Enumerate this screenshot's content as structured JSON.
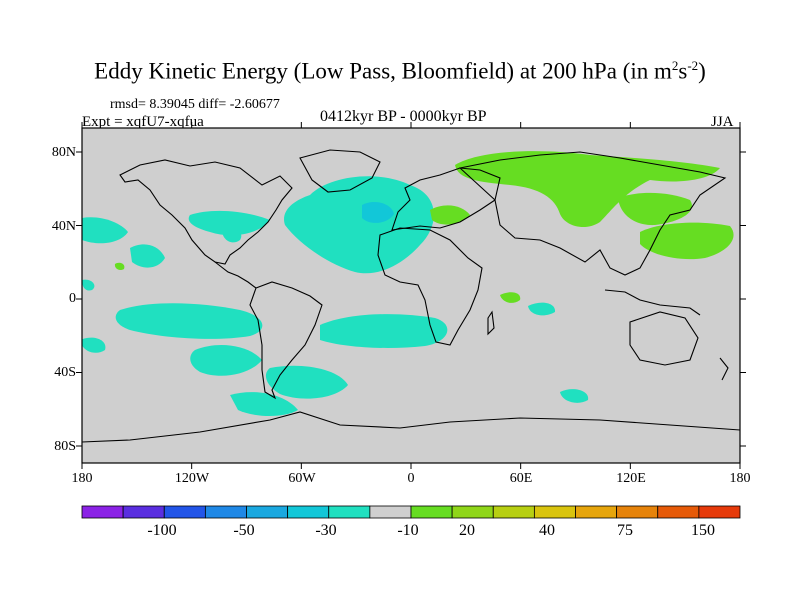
{
  "title": {
    "main": "Eddy Kinetic Energy (Low Pass, Bloomfield) at 200 hPa (in m",
    "sup1": "2",
    "mid": "s",
    "sup2": "-2",
    "end": ")"
  },
  "stats": "rmsd= 8.39045 diff= -2.60677",
  "expt": "Expt = xqfU7-xqfua",
  "period": "0412kyr BP - 0000kyr BP",
  "season": "JJA",
  "colors": {
    "background": "#cfcfcf",
    "coast": "#000000",
    "neg10": "#20e0c0",
    "neg30": "#12c7d8",
    "pos20": "#66dd22"
  },
  "chart_data": {
    "type": "heatmap",
    "projection": "cylindrical equidistant",
    "x_ticks": [
      "180",
      "120W",
      "60W",
      "0",
      "60E",
      "120E",
      "180"
    ],
    "y_ticks": [
      "80N",
      "40N",
      "0",
      "40S",
      "80S"
    ],
    "xlim": [
      -180,
      180
    ],
    "ylim": [
      -90,
      90
    ],
    "colorbar": {
      "colors": [
        "#8b22e6",
        "#5a2ee0",
        "#2255e8",
        "#1f88e6",
        "#1aa8e0",
        "#12c7d8",
        "#20e0c0",
        "#cfcfcf",
        "#66dd22",
        "#8fd619",
        "#b7cf12",
        "#d9c40e",
        "#e6a50c",
        "#e6830a",
        "#e65a08",
        "#e63a0a"
      ],
      "labels": [
        "-100",
        "-50",
        "-30",
        "-10",
        "20",
        "40",
        "75",
        "150"
      ]
    }
  }
}
